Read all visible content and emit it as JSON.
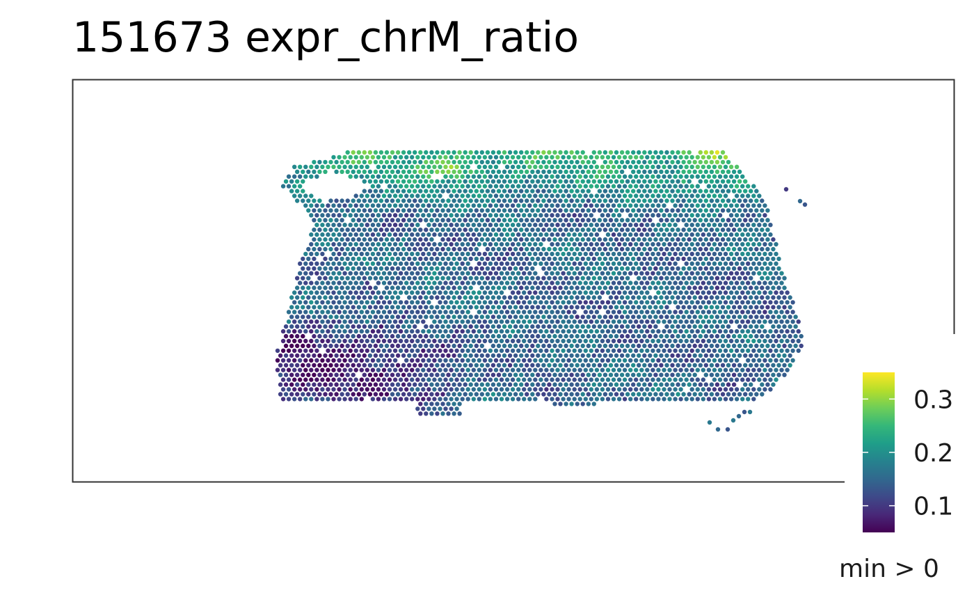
{
  "chart_data": {
    "type": "scatter",
    "title": "151673 expr_chrM_ratio",
    "xlabel": "",
    "ylabel": "",
    "grid": false,
    "legend": {
      "placement": "right",
      "kind": "colorbar",
      "range": [
        0.05,
        0.35
      ],
      "ticks": [
        {
          "value": 0.1,
          "label": "0.1"
        },
        {
          "value": 0.2,
          "label": "0.2"
        },
        {
          "value": 0.3,
          "label": "0.3"
        }
      ],
      "note": "min > 0"
    },
    "colormap": "viridis",
    "colormap_stops": [
      "#440154",
      "#482878",
      "#3e4989",
      "#31688e",
      "#26828e",
      "#1f9e89",
      "#35b779",
      "#6ece58",
      "#b5de2b",
      "#fde725"
    ],
    "frame_color": "#333333",
    "spot_summary": "Visium spots on a hexagonal lattice; values mostly 0.10–0.22, higher (0.25–0.35) along the top edge, lowest (~0.05–0.08) in the lower-left region"
  }
}
